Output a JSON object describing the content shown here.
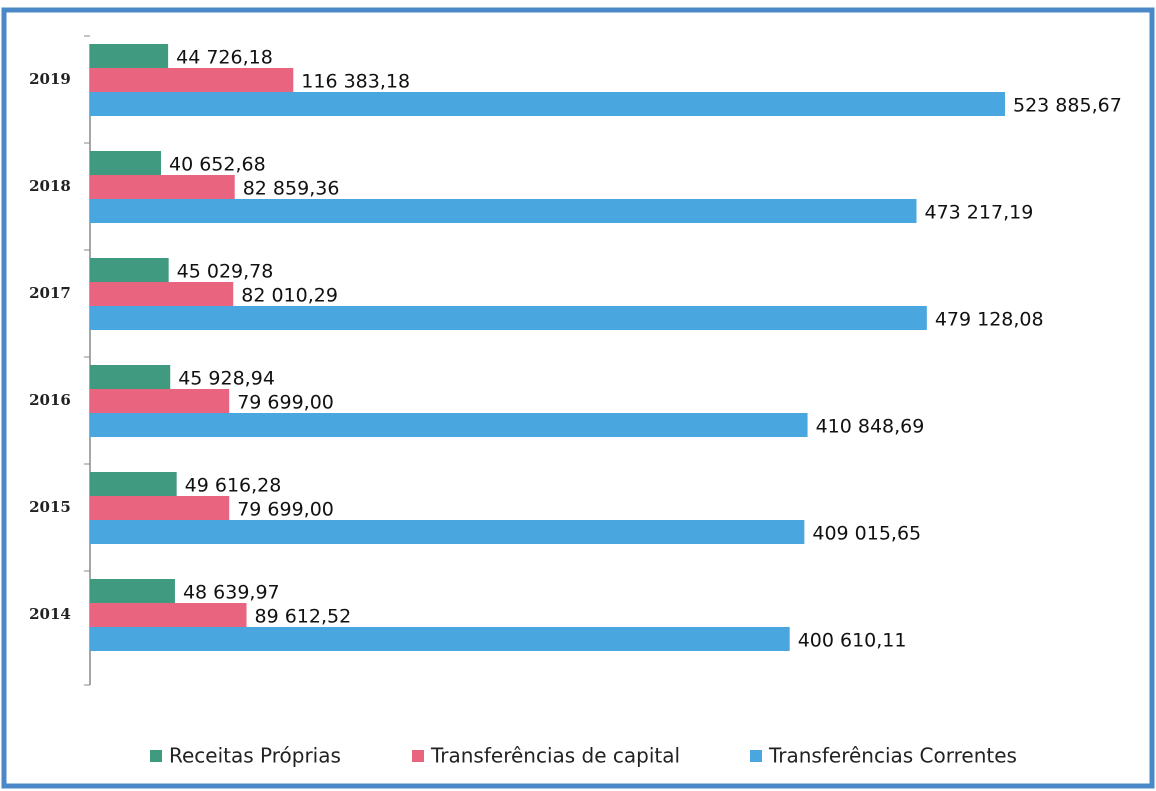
{
  "chart_data": {
    "type": "hbar",
    "categories": [
      "2019",
      "2018",
      "2017",
      "2016",
      "2015",
      "2014"
    ],
    "series": [
      {
        "name": "Receitas Próprias",
        "color": "#3f9a80",
        "values": [
          44726.18,
          40652.68,
          45029.78,
          45928.94,
          49616.28,
          48639.97
        ],
        "value_labels": [
          "44 726,18",
          "40 652,68",
          "45 029,78",
          "45 928,94",
          "49 616,28",
          "48 639,97"
        ]
      },
      {
        "name": "Transferências de capital",
        "color": "#e8647f",
        "values": [
          116383.18,
          82859.36,
          82010.29,
          79699.0,
          79699.0,
          89612.52
        ],
        "value_labels": [
          "116 383,18",
          "82 859,36",
          "82 010,29",
          "79 699,00",
          "79 699,00",
          "89 612,52"
        ]
      },
      {
        "name": "Transferências Correntes",
        "color": "#4aa6df",
        "values": [
          523885.67,
          473217.19,
          479128.08,
          410848.69,
          409015.65,
          400610.11
        ],
        "value_labels": [
          "523 885,67",
          "473 217,19",
          "479 128,08",
          "410 848,69",
          "409 015,65",
          "400 610,11"
        ]
      }
    ],
    "legend": "bottom"
  }
}
